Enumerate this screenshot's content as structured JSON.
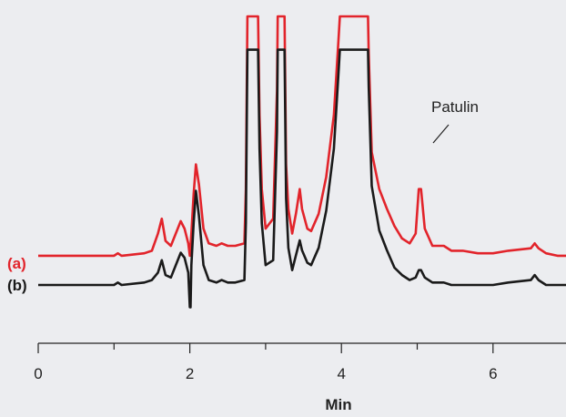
{
  "chart_data": {
    "type": "line",
    "title": "",
    "xlabel": "Min",
    "ylabel": "",
    "xlim": [
      0,
      7
    ],
    "xticks": [
      0,
      2,
      4,
      6
    ],
    "tick_labels": [
      "0",
      "2",
      "4",
      "6"
    ],
    "grid": false,
    "legend": "inline-left",
    "series": [
      {
        "name": "(a)",
        "color": "#e2242b",
        "x": [
          0,
          1.0,
          1.05,
          1.1,
          1.4,
          1.5,
          1.58,
          1.63,
          1.68,
          1.75,
          1.88,
          1.93,
          1.98,
          2.0,
          2.02,
          2.05,
          2.08,
          2.12,
          2.18,
          2.25,
          2.35,
          2.42,
          2.5,
          2.6,
          2.72,
          2.74,
          2.76,
          2.9,
          2.92,
          2.95,
          3.0,
          3.1,
          3.15,
          3.16,
          3.25,
          3.27,
          3.3,
          3.35,
          3.4,
          3.45,
          3.48,
          3.55,
          3.6,
          3.7,
          3.8,
          3.9,
          3.96,
          3.98,
          4.35,
          4.36,
          4.4,
          4.5,
          4.6,
          4.7,
          4.8,
          4.9,
          4.98,
          5.02,
          5.05,
          5.1,
          5.2,
          5.35,
          5.45,
          5.6,
          5.8,
          6.0,
          6.2,
          6.5,
          6.55,
          6.6,
          6.7,
          6.85,
          7.0
        ],
        "y": [
          3,
          3,
          4,
          3,
          4,
          5,
          12,
          18,
          9,
          7,
          17,
          14,
          8,
          3,
          12,
          28,
          40,
          32,
          14,
          8,
          7,
          8,
          7,
          7,
          8,
          30,
          100,
          100,
          60,
          30,
          14,
          18,
          70,
          100,
          100,
          40,
          22,
          12,
          20,
          30,
          22,
          14,
          13,
          20,
          35,
          60,
          90,
          100,
          100,
          85,
          45,
          30,
          22,
          15,
          10,
          8,
          12,
          30,
          30,
          14,
          7,
          7,
          5,
          5,
          4,
          4,
          5,
          6,
          8,
          6,
          4,
          3,
          3
        ]
      },
      {
        "name": "(b)",
        "color": "#1a1a1a",
        "x": [
          0,
          1.0,
          1.05,
          1.1,
          1.4,
          1.5,
          1.58,
          1.63,
          1.68,
          1.75,
          1.88,
          1.93,
          1.98,
          2.0,
          2.01,
          2.02,
          2.05,
          2.08,
          2.12,
          2.18,
          2.25,
          2.35,
          2.42,
          2.5,
          2.6,
          2.72,
          2.74,
          2.76,
          2.9,
          2.92,
          2.95,
          3.0,
          3.1,
          3.15,
          3.16,
          3.25,
          3.27,
          3.3,
          3.35,
          3.4,
          3.45,
          3.48,
          3.55,
          3.6,
          3.7,
          3.8,
          3.9,
          3.96,
          3.98,
          4.35,
          4.36,
          4.4,
          4.5,
          4.6,
          4.7,
          4.8,
          4.9,
          4.98,
          5.02,
          5.05,
          5.1,
          5.2,
          5.35,
          5.45,
          5.6,
          5.8,
          6.0,
          6.2,
          6.5,
          6.55,
          6.6,
          6.7,
          6.85,
          7.0
        ],
        "y": [
          0,
          0,
          1,
          0,
          1,
          2,
          5,
          10,
          4,
          3,
          13,
          11,
          5,
          -9,
          -9,
          8,
          25,
          38,
          28,
          8,
          2,
          1,
          2,
          1,
          1,
          2,
          25,
          95,
          95,
          55,
          25,
          8,
          10,
          62,
          95,
          95,
          35,
          15,
          6,
          12,
          18,
          14,
          9,
          8,
          15,
          30,
          55,
          85,
          95,
          95,
          80,
          40,
          22,
          14,
          7,
          4,
          2,
          3,
          6,
          6,
          3,
          1,
          1,
          0,
          0,
          0,
          0,
          1,
          2,
          4,
          2,
          0,
          0,
          0
        ]
      }
    ],
    "annotations": [
      {
        "text": "Patulin",
        "x": 5.05
      }
    ]
  }
}
